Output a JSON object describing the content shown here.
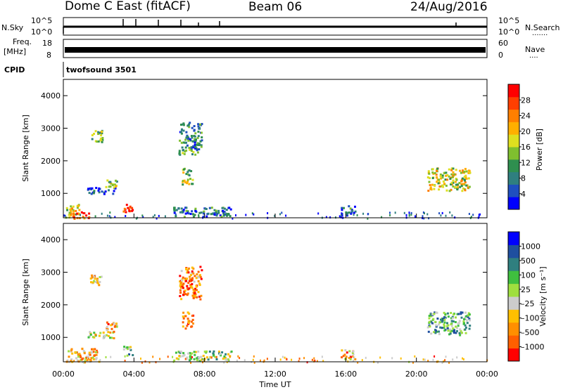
{
  "header": {
    "station": "Dome C East (fitACF)",
    "beam": "Beam 06",
    "date": "24/Aug/2016"
  },
  "summary_panels": {
    "nsky": {
      "label": "N.Sky",
      "ticks": [
        "10^5",
        "10^0"
      ]
    },
    "nsearch": {
      "label": "N.Search",
      "ticks": [
        "10^5",
        "10^0"
      ]
    },
    "freq": {
      "label_top": "Freq.",
      "label_unit": "[MHz]",
      "ticks": [
        "18",
        "8"
      ]
    },
    "nave": {
      "label": "Nave",
      "ticks": [
        "60",
        "0"
      ]
    },
    "cpid": {
      "label": "CPID",
      "program": "twofsound 3501"
    }
  },
  "chart_data": [
    {
      "type": "heatmap",
      "panel": "power",
      "ylabel": "Slant Range [km]",
      "ylim": [
        250,
        4500
      ],
      "yticks": [
        "4000",
        "3000",
        "2000",
        "1000"
      ],
      "xlim_hours": [
        0,
        24
      ],
      "colorbar_label": "Power [dB]",
      "colorbar_ticks": [
        "28",
        "24",
        "20",
        "16",
        "12",
        "8",
        "4"
      ],
      "colorbar_colors": [
        "#0000ff",
        "#1f4fbf",
        "#2f7f7f",
        "#2f8f4f",
        "#7fbf2f",
        "#dfdf1f",
        "#ffaf00",
        "#ff7f00",
        "#ff3f00",
        "#ff0000"
      ],
      "echo_regions": [
        {
          "t": [
            0.1,
            0.9
          ],
          "r": [
            250,
            700
          ],
          "level": 0.55
        },
        {
          "t": [
            0.5,
            1.5
          ],
          "r": [
            250,
            450
          ],
          "level": 0.9
        },
        {
          "t": [
            3.3,
            3.9
          ],
          "r": [
            450,
            750
          ],
          "level": 0.95
        },
        {
          "t": [
            1.3,
            2.9
          ],
          "r": [
            1000,
            1200
          ],
          "level": 0.1
        },
        {
          "t": [
            2.3,
            3.0
          ],
          "r": [
            1200,
            1500
          ],
          "level": 0.4
        },
        {
          "t": [
            1.5,
            2.2
          ],
          "r": [
            2550,
            2950
          ],
          "level": 0.45
        },
        {
          "t": [
            6.7,
            7.3
          ],
          "r": [
            1300,
            1800
          ],
          "level": 0.5
        },
        {
          "t": [
            6.5,
            7.8
          ],
          "r": [
            2200,
            3200
          ],
          "level": 0.3
        },
        {
          "t": [
            6.2,
            9.5
          ],
          "r": [
            300,
            600
          ],
          "level": 0.25
        },
        {
          "t": [
            15.7,
            16.5
          ],
          "r": [
            350,
            650
          ],
          "level": 0.2
        },
        {
          "t": [
            20.6,
            23.0
          ],
          "r": [
            1100,
            1800
          ],
          "level": 0.55
        },
        {
          "t": [
            0.0,
            24.0
          ],
          "r": [
            250,
            450
          ],
          "level": 0.15
        }
      ]
    },
    {
      "type": "heatmap",
      "panel": "velocity",
      "ylabel": "Slant Range [km]",
      "ylim": [
        250,
        4500
      ],
      "yticks": [
        "4000",
        "3000",
        "2000",
        "1000"
      ],
      "xlim_hours": [
        0,
        24
      ],
      "xticks": [
        "00:00",
        "04:00",
        "08:00",
        "12:00",
        "16:00",
        "20:00",
        "00:00"
      ],
      "xlabel": "Time UT",
      "colorbar_label": "Velocity [m s⁻¹]",
      "colorbar_ticks": [
        "1000",
        "500",
        "100",
        "25",
        "–25",
        "–100",
        "–500",
        "–1000"
      ],
      "colorbar_colors": [
        "#ff0000",
        "#ff5f00",
        "#ff8f00",
        "#ffbf00",
        "#cccccc",
        "#9fdf3f",
        "#3fbf3f",
        "#2f7f7f",
        "#1f4f9f",
        "#0000ff"
      ],
      "echo_regions": [
        {
          "t": [
            0.1,
            2.0
          ],
          "r": [
            250,
            700
          ],
          "level": 0.35
        },
        {
          "t": [
            3.3,
            3.9
          ],
          "r": [
            450,
            750
          ],
          "level": 0.6
        },
        {
          "t": [
            1.3,
            2.9
          ],
          "r": [
            1000,
            1200
          ],
          "level": 0.45
        },
        {
          "t": [
            2.3,
            3.0
          ],
          "r": [
            1200,
            1500
          ],
          "level": 0.3
        },
        {
          "t": [
            1.5,
            2.2
          ],
          "r": [
            2550,
            2950
          ],
          "level": 0.3
        },
        {
          "t": [
            6.7,
            7.3
          ],
          "r": [
            1300,
            1800
          ],
          "level": 0.25
        },
        {
          "t": [
            6.5,
            7.8
          ],
          "r": [
            2200,
            3200
          ],
          "level": 0.2
        },
        {
          "t": [
            6.2,
            9.5
          ],
          "r": [
            300,
            600
          ],
          "level": 0.55
        },
        {
          "t": [
            15.7,
            16.5
          ],
          "r": [
            350,
            650
          ],
          "level": 0.3
        },
        {
          "t": [
            20.6,
            23.0
          ],
          "r": [
            1100,
            1800
          ],
          "level": 0.65
        },
        {
          "t": [
            0.0,
            24.0
          ],
          "r": [
            250,
            450
          ],
          "level": 0.3
        }
      ]
    }
  ]
}
